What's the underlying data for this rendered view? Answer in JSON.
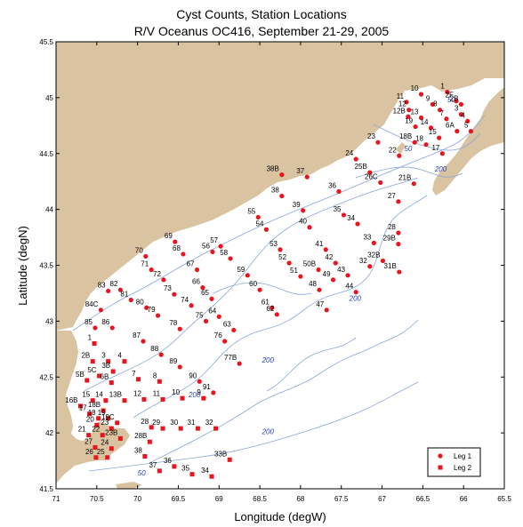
{
  "title": {
    "line1": "Cyst Counts, Station Locations",
    "line2": "R/V Oceanus OC416, September 21-29, 2005"
  },
  "axes": {
    "xlabel": "Longitude (degW)",
    "ylabel": "Latitude (degN)",
    "xlim": [
      71,
      65.5
    ],
    "ylim": [
      41.5,
      45.5
    ],
    "x_ticks": [
      "71",
      "70.5",
      "70",
      "69.5",
      "69",
      "68.5",
      "68",
      "67.5",
      "67",
      "66.5",
      "66",
      "65.5"
    ],
    "y_ticks": [
      "41.5",
      "42",
      "42.5",
      "43",
      "43.5",
      "44",
      "44.5",
      "45",
      "45.5"
    ]
  },
  "colors": {
    "land": "#d9c3a0",
    "water": "#ffffff",
    "contour": "#8aa6d6",
    "contour_label": "#2b3fb0",
    "marker": "#e8141e"
  },
  "legend": {
    "leg1": "Leg 1",
    "leg2": "Leg 2",
    "placement": "bottom-right"
  },
  "contour_labels": [
    {
      "text": "50",
      "lon": 66.15,
      "lat": 44.96
    },
    {
      "text": "50",
      "lon": 66.68,
      "lat": 44.52
    },
    {
      "text": "200",
      "lon": 66.28,
      "lat": 44.34
    },
    {
      "text": "200",
      "lon": 67.33,
      "lat": 43.18
    },
    {
      "text": "200",
      "lon": 68.4,
      "lat": 42.63
    },
    {
      "text": "200",
      "lon": 69.3,
      "lat": 42.32
    },
    {
      "text": "200",
      "lon": 68.4,
      "lat": 41.99
    },
    {
      "text": "50",
      "lon": 69.95,
      "lat": 41.62
    }
  ],
  "leg1_stations": [
    {
      "label": "1",
      "lon": 66.2,
      "lat": 45.05
    },
    {
      "label": "10",
      "lon": 66.52,
      "lat": 45.03
    },
    {
      "label": "11",
      "lon": 66.7,
      "lat": 44.96
    },
    {
      "label": "9",
      "lon": 66.38,
      "lat": 44.94
    },
    {
      "label": "2F",
      "lon": 66.09,
      "lat": 44.97
    },
    {
      "label": "2B",
      "lon": 66.03,
      "lat": 44.94
    },
    {
      "label": "12",
      "lon": 66.67,
      "lat": 44.89
    },
    {
      "label": "8",
      "lon": 66.29,
      "lat": 44.89
    },
    {
      "label": "12B",
      "lon": 66.68,
      "lat": 44.83
    },
    {
      "label": "3",
      "lon": 66.03,
      "lat": 44.85
    },
    {
      "label": "13",
      "lon": 66.52,
      "lat": 44.82
    },
    {
      "label": "7",
      "lon": 66.21,
      "lat": 44.81
    },
    {
      "label": "4",
      "lon": 65.95,
      "lat": 44.79
    },
    {
      "label": "19",
      "lon": 66.59,
      "lat": 44.74
    },
    {
      "label": "14",
      "lon": 66.4,
      "lat": 44.73
    },
    {
      "label": "6A",
      "lon": 66.08,
      "lat": 44.7
    },
    {
      "label": "5",
      "lon": 65.91,
      "lat": 44.7
    },
    {
      "label": "15",
      "lon": 66.3,
      "lat": 44.64
    },
    {
      "label": "18B",
      "lon": 66.6,
      "lat": 44.6
    },
    {
      "label": "18",
      "lon": 66.46,
      "lat": 44.58
    },
    {
      "label": "17",
      "lon": 66.26,
      "lat": 44.5
    },
    {
      "label": "23",
      "lon": 67.05,
      "lat": 44.6
    },
    {
      "label": "24",
      "lon": 67.32,
      "lat": 44.45
    },
    {
      "label": "22",
      "lon": 66.79,
      "lat": 44.48
    },
    {
      "label": "25B",
      "lon": 67.15,
      "lat": 44.33
    },
    {
      "label": "26C",
      "lon": 67.02,
      "lat": 44.24
    },
    {
      "label": "21B",
      "lon": 66.61,
      "lat": 44.23
    },
    {
      "label": "38B",
      "lon": 68.23,
      "lat": 44.31
    },
    {
      "label": "37",
      "lon": 67.92,
      "lat": 44.29
    },
    {
      "label": "36",
      "lon": 67.53,
      "lat": 44.16
    },
    {
      "label": "38",
      "lon": 68.23,
      "lat": 44.12
    },
    {
      "label": "27",
      "lon": 66.8,
      "lat": 44.07
    },
    {
      "label": "39",
      "lon": 67.97,
      "lat": 43.99
    },
    {
      "label": "35",
      "lon": 67.47,
      "lat": 43.95
    },
    {
      "label": "55",
      "lon": 68.52,
      "lat": 43.93
    },
    {
      "label": "34",
      "lon": 67.3,
      "lat": 43.87
    },
    {
      "label": "40",
      "lon": 67.89,
      "lat": 43.84
    },
    {
      "label": "54",
      "lon": 68.42,
      "lat": 43.82
    },
    {
      "label": "28",
      "lon": 66.8,
      "lat": 43.79
    },
    {
      "label": "33",
      "lon": 67.1,
      "lat": 43.7
    },
    {
      "label": "29B",
      "lon": 66.8,
      "lat": 43.69
    },
    {
      "label": "69",
      "lon": 69.54,
      "lat": 43.71
    },
    {
      "label": "57",
      "lon": 68.98,
      "lat": 43.67
    },
    {
      "label": "53",
      "lon": 68.25,
      "lat": 43.64
    },
    {
      "label": "41",
      "lon": 67.69,
      "lat": 43.64
    },
    {
      "label": "56",
      "lon": 69.08,
      "lat": 43.62
    },
    {
      "label": "68",
      "lon": 69.44,
      "lat": 43.6
    },
    {
      "label": "58",
      "lon": 68.86,
      "lat": 43.56
    },
    {
      "label": "52",
      "lon": 68.14,
      "lat": 43.52
    },
    {
      "label": "42",
      "lon": 67.57,
      "lat": 43.52
    },
    {
      "label": "32B",
      "lon": 66.99,
      "lat": 43.54
    },
    {
      "label": "70",
      "lon": 69.9,
      "lat": 43.58
    },
    {
      "label": "32",
      "lon": 67.15,
      "lat": 43.49
    },
    {
      "label": "71",
      "lon": 69.83,
      "lat": 43.46
    },
    {
      "label": "67",
      "lon": 69.27,
      "lat": 43.46
    },
    {
      "label": "50B",
      "lon": 67.78,
      "lat": 43.46
    },
    {
      "label": "31B",
      "lon": 66.79,
      "lat": 43.44
    },
    {
      "label": "59",
      "lon": 68.65,
      "lat": 43.41
    },
    {
      "label": "51",
      "lon": 68.0,
      "lat": 43.4
    },
    {
      "label": "43",
      "lon": 67.42,
      "lat": 43.41
    },
    {
      "label": "49",
      "lon": 67.6,
      "lat": 43.37
    },
    {
      "label": "72",
      "lon": 69.68,
      "lat": 43.37
    },
    {
      "label": "66",
      "lon": 69.2,
      "lat": 43.3
    },
    {
      "label": "60",
      "lon": 68.5,
      "lat": 43.28
    },
    {
      "label": "48",
      "lon": 67.77,
      "lat": 43.28
    },
    {
      "label": "44",
      "lon": 67.32,
      "lat": 43.26
    },
    {
      "label": "83",
      "lon": 70.36,
      "lat": 43.27
    },
    {
      "label": "82",
      "lon": 70.21,
      "lat": 43.28
    },
    {
      "label": "73",
      "lon": 69.55,
      "lat": 43.24
    },
    {
      "label": "65",
      "lon": 69.09,
      "lat": 43.2
    },
    {
      "label": "81",
      "lon": 70.08,
      "lat": 43.19
    },
    {
      "label": "74",
      "lon": 69.34,
      "lat": 43.14
    },
    {
      "label": "80",
      "lon": 69.89,
      "lat": 43.12
    },
    {
      "label": "61",
      "lon": 68.35,
      "lat": 43.12
    },
    {
      "label": "47",
      "lon": 67.68,
      "lat": 43.1
    },
    {
      "label": "84C",
      "lon": 70.45,
      "lat": 43.1
    },
    {
      "label": "64",
      "lon": 69.0,
      "lat": 43.04
    },
    {
      "label": "62",
      "lon": 68.29,
      "lat": 43.06
    },
    {
      "label": "79",
      "lon": 69.75,
      "lat": 43.05
    },
    {
      "label": "75",
      "lon": 69.16,
      "lat": 43.0
    },
    {
      "label": "85",
      "lon": 70.52,
      "lat": 42.94
    },
    {
      "label": "86",
      "lon": 70.31,
      "lat": 42.94
    },
    {
      "label": "78",
      "lon": 69.48,
      "lat": 42.93
    },
    {
      "label": "63",
      "lon": 68.82,
      "lat": 42.92
    },
    {
      "label": "87",
      "lon": 69.93,
      "lat": 42.82
    },
    {
      "label": "76",
      "lon": 68.93,
      "lat": 42.82
    },
    {
      "label": "88",
      "lon": 69.71,
      "lat": 42.7
    },
    {
      "label": "77B",
      "lon": 68.75,
      "lat": 42.62
    },
    {
      "label": "89",
      "lon": 69.48,
      "lat": 42.59
    },
    {
      "label": "90",
      "lon": 69.24,
      "lat": 42.46
    },
    {
      "label": "91",
      "lon": 69.07,
      "lat": 42.36
    }
  ],
  "leg2_stations": [
    {
      "label": "1",
      "lon": 70.53,
      "lat": 42.8
    },
    {
      "label": "2B",
      "lon": 70.55,
      "lat": 42.64
    },
    {
      "label": "3",
      "lon": 70.36,
      "lat": 42.64
    },
    {
      "label": "4",
      "lon": 70.16,
      "lat": 42.64
    },
    {
      "label": "3B",
      "lon": 70.3,
      "lat": 42.55
    },
    {
      "label": "5C",
      "lon": 70.47,
      "lat": 42.51
    },
    {
      "label": "5B",
      "lon": 70.62,
      "lat": 42.47
    },
    {
      "label": "6B",
      "lon": 70.32,
      "lat": 42.45
    },
    {
      "label": "7",
      "lon": 69.99,
      "lat": 42.48
    },
    {
      "label": "8",
      "lon": 69.73,
      "lat": 42.46
    },
    {
      "label": "15",
      "lon": 70.55,
      "lat": 42.29
    },
    {
      "label": "14",
      "lon": 70.39,
      "lat": 42.29
    },
    {
      "label": "13B",
      "lon": 70.16,
      "lat": 42.29
    },
    {
      "label": "12",
      "lon": 69.92,
      "lat": 42.3
    },
    {
      "label": "11",
      "lon": 69.69,
      "lat": 42.3
    },
    {
      "label": "10",
      "lon": 69.45,
      "lat": 42.31
    },
    {
      "label": "9",
      "lon": 69.19,
      "lat": 42.31
    },
    {
      "label": "16B",
      "lon": 70.7,
      "lat": 42.24
    },
    {
      "label": "18B",
      "lon": 70.42,
      "lat": 42.2
    },
    {
      "label": "17",
      "lon": 70.59,
      "lat": 42.17
    },
    {
      "label": "18",
      "lon": 70.48,
      "lat": 42.13
    },
    {
      "label": "19",
      "lon": 70.36,
      "lat": 42.13
    },
    {
      "label": "19C",
      "lon": 70.25,
      "lat": 42.09
    },
    {
      "label": "20",
      "lon": 70.5,
      "lat": 42.07
    },
    {
      "label": "23",
      "lon": 70.32,
      "lat": 42.04
    },
    {
      "label": "28",
      "lon": 69.83,
      "lat": 42.05
    },
    {
      "label": "29",
      "lon": 69.69,
      "lat": 42.04
    },
    {
      "label": "30",
      "lon": 69.47,
      "lat": 42.04
    },
    {
      "label": "31",
      "lon": 69.26,
      "lat": 42.04
    },
    {
      "label": "32",
      "lon": 69.04,
      "lat": 42.04
    },
    {
      "label": "21",
      "lon": 70.6,
      "lat": 41.98
    },
    {
      "label": "22",
      "lon": 70.43,
      "lat": 41.98
    },
    {
      "label": "23B",
      "lon": 70.21,
      "lat": 41.95
    },
    {
      "label": "28B",
      "lon": 69.85,
      "lat": 41.92
    },
    {
      "label": "27",
      "lon": 70.52,
      "lat": 41.87
    },
    {
      "label": "24",
      "lon": 70.32,
      "lat": 41.86
    },
    {
      "label": "26",
      "lon": 70.51,
      "lat": 41.78
    },
    {
      "label": "25",
      "lon": 70.37,
      "lat": 41.78
    },
    {
      "label": "38",
      "lon": 69.91,
      "lat": 41.79
    },
    {
      "label": "33B",
      "lon": 68.87,
      "lat": 41.76
    },
    {
      "label": "36",
      "lon": 69.55,
      "lat": 41.7
    },
    {
      "label": "37",
      "lon": 69.73,
      "lat": 41.66
    },
    {
      "label": "35",
      "lon": 69.33,
      "lat": 41.63
    },
    {
      "label": "34",
      "lon": 69.09,
      "lat": 41.61
    }
  ]
}
